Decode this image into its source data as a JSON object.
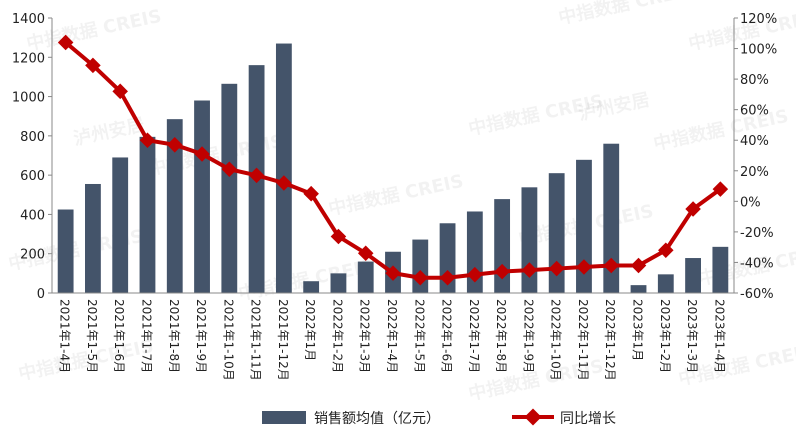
{
  "chart_data": {
    "type": "bar+line",
    "categories": [
      "2021年1-4月",
      "2021年1-5月",
      "2021年1-6月",
      "2021年1-7月",
      "2021年1-8月",
      "2021年1-9月",
      "2021年1-10月",
      "2021年1-11月",
      "2021年1-12月",
      "2022年1月",
      "2022年1-2月",
      "2022年1-3月",
      "2022年1-4月",
      "2022年1-5月",
      "2022年1-6月",
      "2022年1-7月",
      "2022年1-8月",
      "2022年1-9月",
      "2022年1-10月",
      "2022年1-11月",
      "2022年1-12月",
      "2023年1月",
      "2023年1-2月",
      "2023年1-3月",
      "2023年1-4月"
    ],
    "series": [
      {
        "name": "销售额均值（亿元）",
        "type": "bar",
        "axis": "left",
        "color": "#44546a",
        "values": [
          425,
          555,
          690,
          795,
          885,
          980,
          1065,
          1160,
          1270,
          60,
          100,
          160,
          210,
          272,
          355,
          415,
          478,
          538,
          610,
          678,
          760,
          40,
          95,
          178,
          235
        ]
      },
      {
        "name": "同比增长",
        "type": "line",
        "axis": "right",
        "color": "#c00000",
        "values": [
          104,
          89,
          72,
          40,
          37,
          31,
          21,
          17,
          12,
          5,
          -23,
          -34,
          -47,
          -50,
          -50,
          -48,
          -46,
          -45,
          -44,
          -43,
          -42,
          -42,
          -32,
          -5,
          8
        ]
      }
    ],
    "ylim_left": [
      0,
      1400
    ],
    "yticks_left": [
      "0",
      "200",
      "400",
      "600",
      "800",
      "1000",
      "1200",
      "1400"
    ],
    "ylim_right": [
      -60,
      120
    ],
    "yticks_right": [
      "-60%",
      "-40%",
      "-20%",
      "0%",
      "20%",
      "40%",
      "60%",
      "80%",
      "100%",
      "120%"
    ],
    "legend_position": "bottom",
    "grid": false
  },
  "watermarks": [
    "中指数据 CREIS",
    "泸州安居"
  ]
}
